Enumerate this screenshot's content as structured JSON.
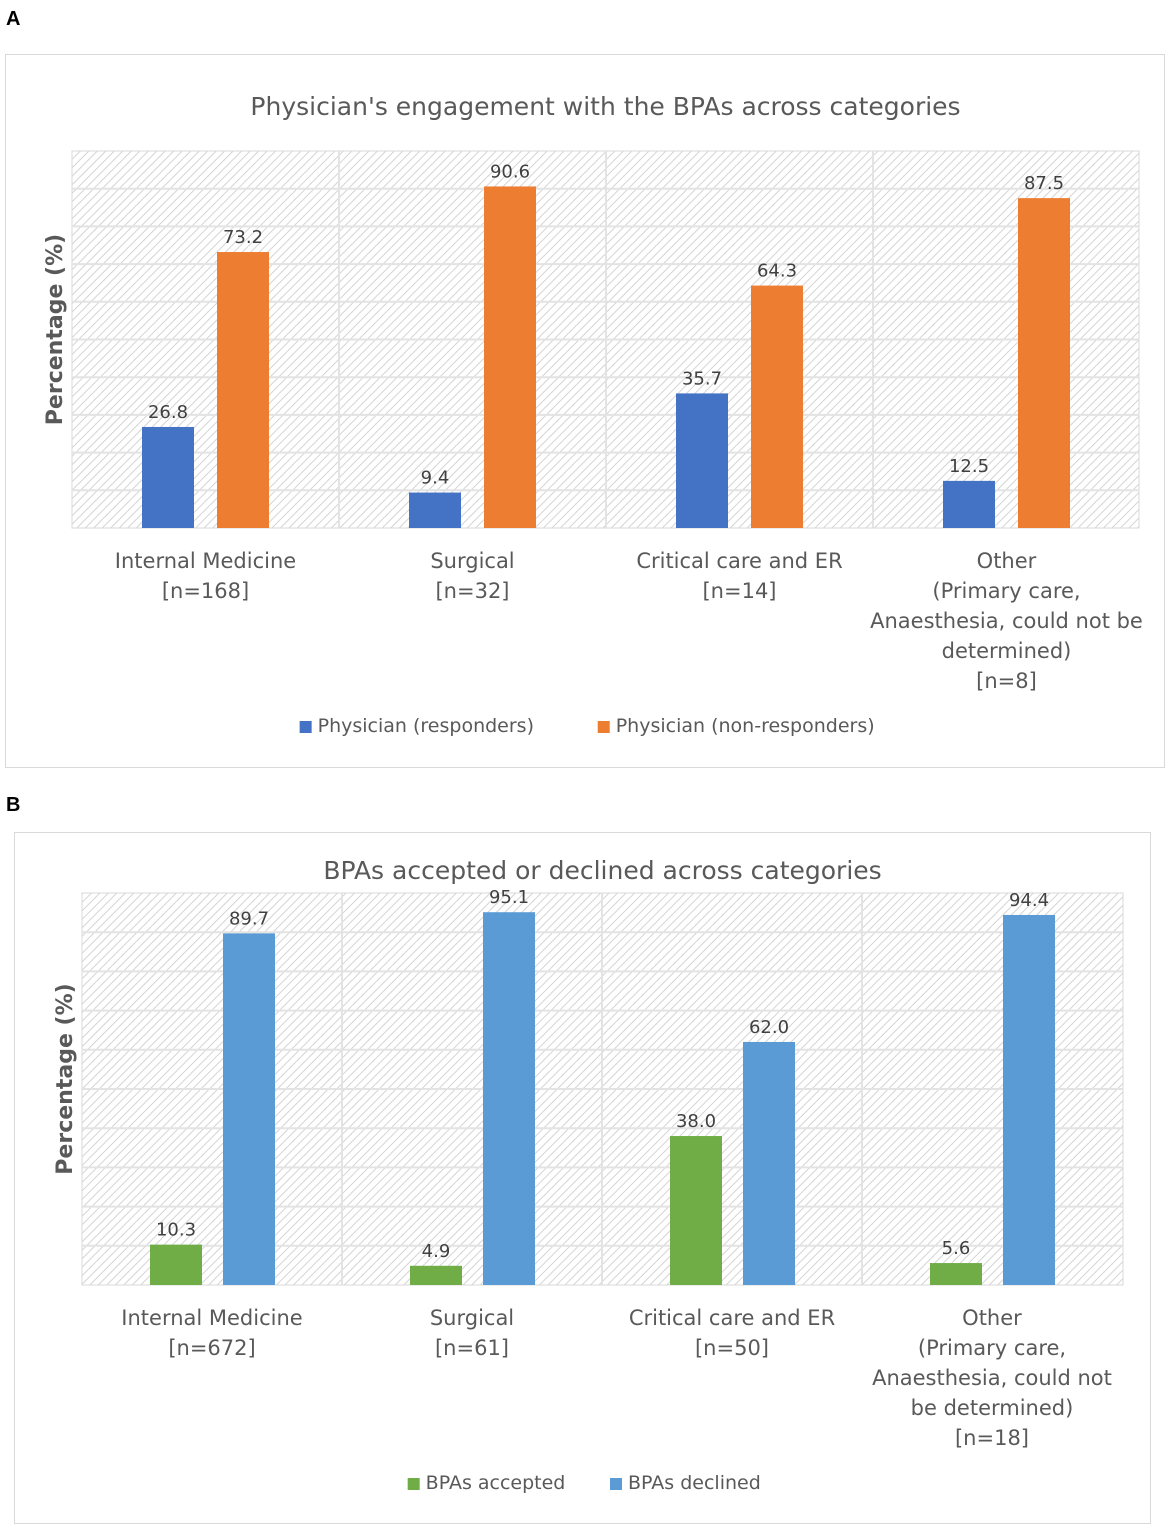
{
  "panels": {
    "a_label": "A",
    "b_label": "B"
  },
  "chart_data": [
    {
      "type": "bar",
      "title": "Physician's engagement with the BPAs across categories",
      "ylabel": "Percentage (%)",
      "xlabel": "",
      "ylim": [
        0,
        100
      ],
      "grid": true,
      "legend_position": "bottom",
      "categories": [
        [
          "Internal Medicine",
          "[n=168]"
        ],
        [
          "Surgical",
          "[n=32]"
        ],
        [
          "Critical care and ER",
          "[n=14]"
        ],
        [
          "Other",
          "(Primary care,",
          "Anaesthesia, could not be",
          "determined)",
          "[n=8]"
        ]
      ],
      "series": [
        {
          "name": "Physician (responders)",
          "color": "#4472C4",
          "values": [
            26.8,
            9.4,
            35.7,
            12.5
          ],
          "labels": [
            "26.8",
            "9.4",
            "35.7",
            "12.5"
          ]
        },
        {
          "name": "Physician (non-responders)",
          "color": "#ED7D31",
          "values": [
            73.2,
            90.6,
            64.3,
            87.5
          ],
          "labels": [
            "73.2",
            "90.6",
            "64.3",
            "87.5"
          ]
        }
      ]
    },
    {
      "type": "bar",
      "title": "BPAs accepted or declined across categories",
      "ylabel": "Percentage (%)",
      "xlabel": "",
      "ylim": [
        0,
        100
      ],
      "grid": true,
      "legend_position": "bottom",
      "categories": [
        [
          "Internal Medicine",
          "[n=672]"
        ],
        [
          "Surgical",
          "[n=61]"
        ],
        [
          "Critical care and ER",
          "[n=50]"
        ],
        [
          "Other",
          "(Primary care,",
          "Anaesthesia, could not",
          "be determined)",
          "[n=18]"
        ]
      ],
      "series": [
        {
          "name": "BPAs accepted",
          "color": "#70AD47",
          "values": [
            10.3,
            4.9,
            38.0,
            5.6
          ],
          "labels": [
            "10.3",
            "4.9",
            "38.0",
            "5.6"
          ]
        },
        {
          "name": "BPAs declined",
          "color": "#5B9BD5",
          "values": [
            89.7,
            95.1,
            62.0,
            94.4
          ],
          "labels": [
            "89.7",
            "95.1",
            "62.0",
            "94.4"
          ]
        }
      ]
    }
  ]
}
